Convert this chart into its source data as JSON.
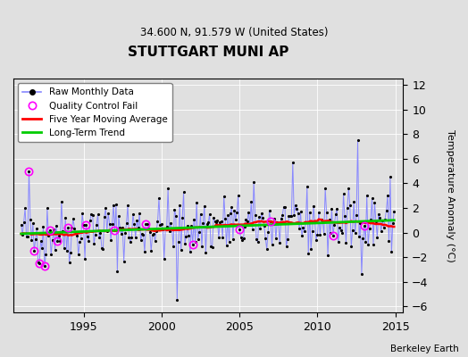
{
  "title": "STUTTGART MUNI AP",
  "subtitle": "34.600 N, 91.579 W (United States)",
  "ylabel": "Temperature Anomaly (°C)",
  "credit": "Berkeley Earth",
  "xlim": [
    1990.5,
    2015.5
  ],
  "ylim": [
    -6.5,
    12.5
  ],
  "yticks": [
    -6,
    -4,
    -2,
    0,
    2,
    4,
    6,
    8,
    10,
    12
  ],
  "xticks": [
    1995,
    2000,
    2005,
    2010,
    2015
  ],
  "raw_line_color": "#8888ff",
  "raw_dot_color": "#000000",
  "moving_avg_color": "#ff0000",
  "trend_color": "#00cc00",
  "qc_fail_color": "#ff00ff",
  "background_color": "#e0e0e0",
  "legend_background": "#ffffff",
  "grid_color": "#ffffff",
  "seed": 42
}
